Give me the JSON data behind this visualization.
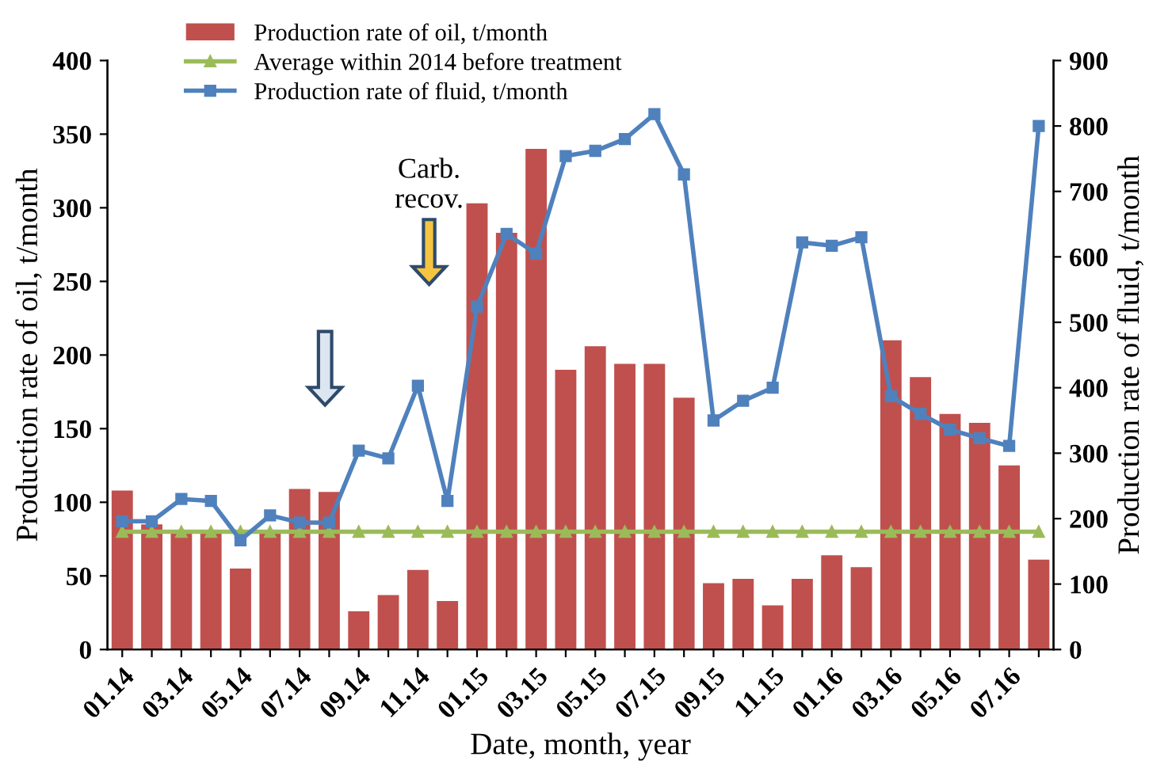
{
  "chart_data": {
    "type": "bar",
    "xlabel": "Date, month, year",
    "ylabel": "Production rate of oil, t/month",
    "y2label": "Production rate of fluid, t/month",
    "categories": [
      "01.14",
      null,
      "03.14",
      null,
      "05.14",
      null,
      "07.14",
      null,
      "09.14",
      null,
      "11.14",
      null,
      "01.15",
      null,
      "03.15",
      null,
      "05.15",
      null,
      "07.15",
      null,
      "09.15",
      null,
      "11.15",
      null,
      "01.16",
      null,
      "03.16",
      null,
      "05.16",
      null,
      "07.16",
      null
    ],
    "series": [
      {
        "name": "Production rate of oil, t/month",
        "color": "#c0504d",
        "values": [
          108,
          85,
          80,
          80,
          55,
          80,
          109,
          107,
          26,
          37,
          54,
          33,
          303,
          283,
          340,
          190,
          206,
          194,
          194,
          171,
          45,
          48,
          30,
          48,
          64,
          56,
          210,
          185,
          160,
          154,
          125,
          61
        ]
      },
      {
        "name": "Average within 2014 before treatment",
        "type": "line",
        "color": "#9bbb59",
        "marker": "triangle",
        "values": [
          80,
          80,
          80,
          80,
          80,
          80,
          80,
          80,
          80,
          80,
          80,
          80,
          80,
          80,
          80,
          80,
          80,
          80,
          80,
          80,
          80,
          80,
          80,
          80,
          80,
          80,
          80,
          80,
          80,
          80,
          80,
          80
        ]
      },
      {
        "name": "Production rate of fluid, t/month",
        "type": "line",
        "axis": "y2",
        "color": "#4f81bd",
        "marker": "square",
        "values": [
          196,
          196,
          230,
          227,
          167,
          205,
          194,
          194,
          304,
          292,
          403,
          227,
          524,
          635,
          605,
          754,
          762,
          780,
          818,
          726,
          350,
          380,
          400,
          622,
          617,
          630,
          387,
          360,
          336,
          323,
          311,
          800
        ]
      }
    ],
    "ylim": [
      0,
      400
    ],
    "yticks": [
      0,
      50,
      100,
      150,
      200,
      250,
      300,
      350,
      400
    ],
    "y2lim": [
      0,
      900
    ],
    "y2ticks": [
      0,
      100,
      200,
      300,
      400,
      500,
      600,
      700,
      800,
      900
    ],
    "annotations": [
      "Carb.\nrecov."
    ],
    "legend": "top",
    "grid": false
  }
}
